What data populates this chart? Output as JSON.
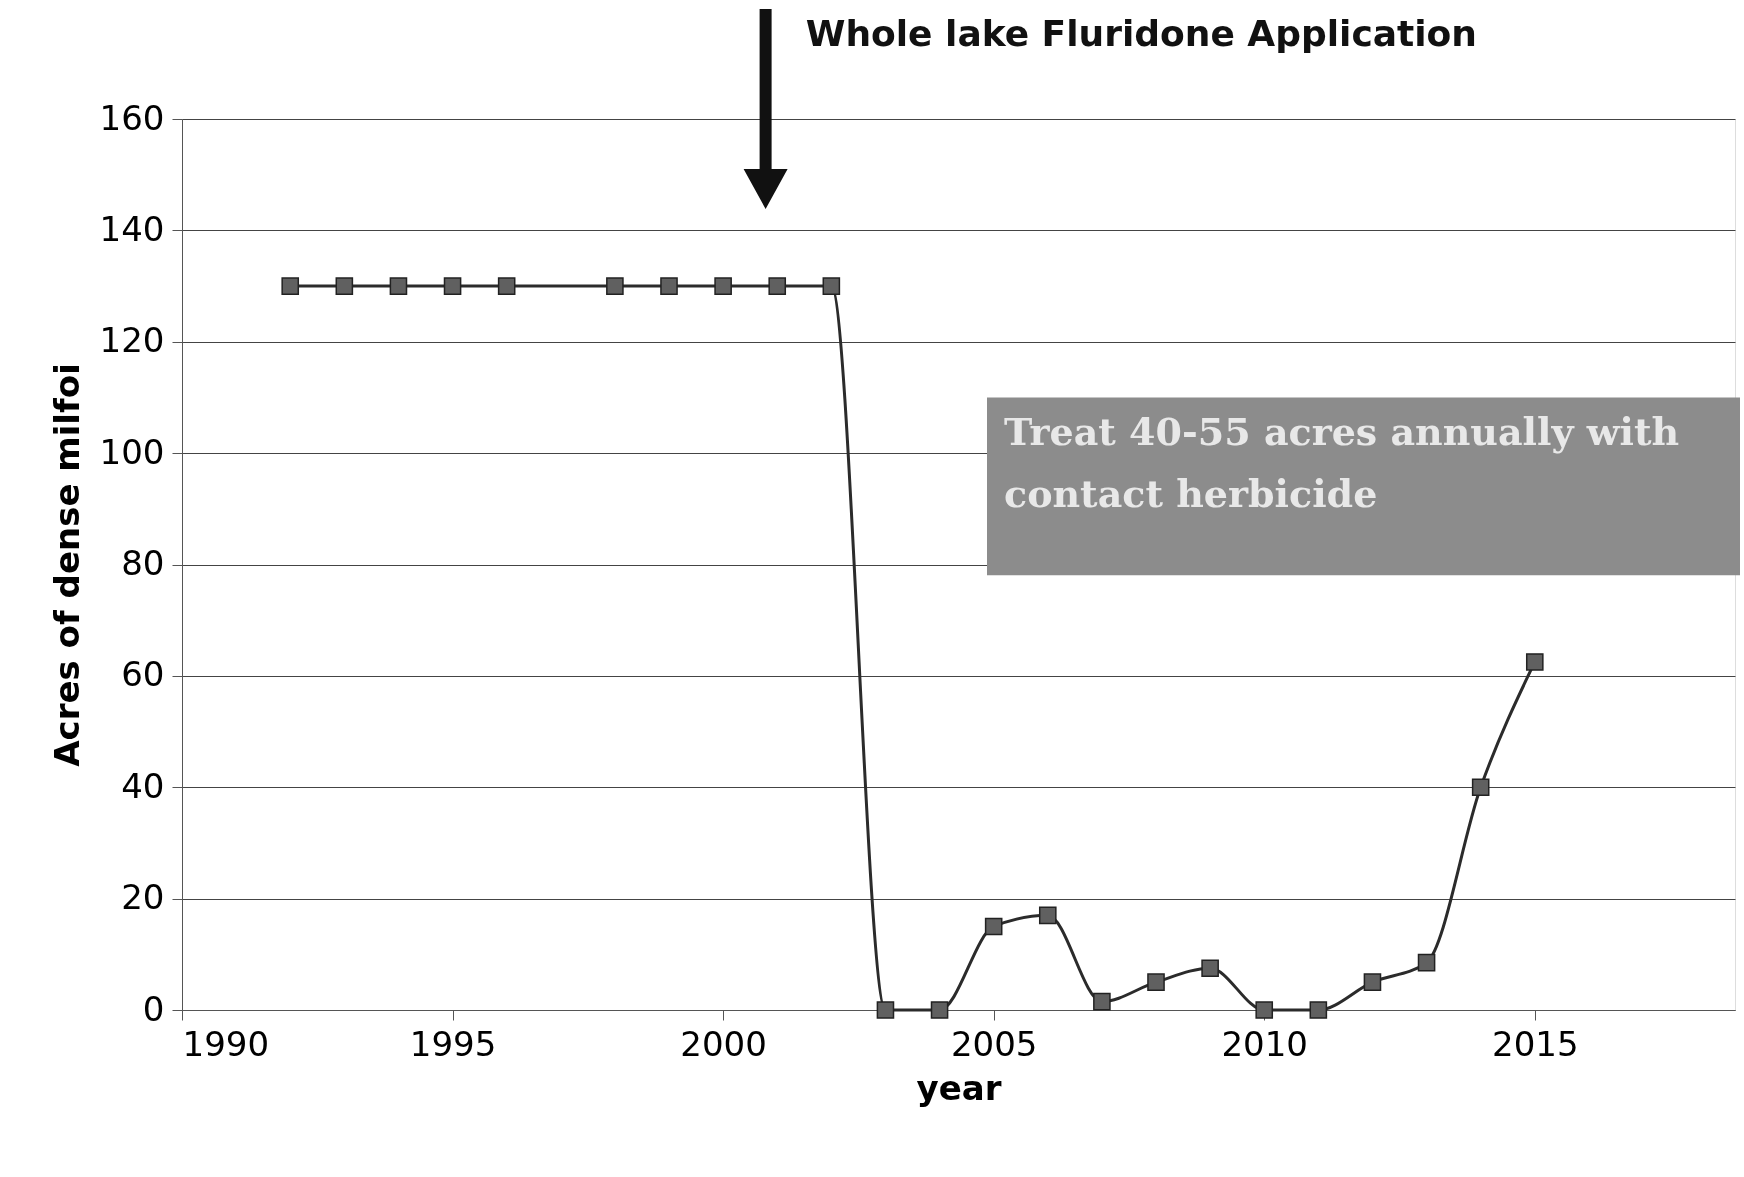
{
  "chart_data": {
    "type": "line",
    "xlabel": "year",
    "ylabel": "Acres of dense milfoi",
    "x": [
      1992,
      1993,
      1994,
      1995,
      1996,
      1998,
      1999,
      2000,
      2001,
      2002,
      2003,
      2004,
      2005,
      2006,
      2007,
      2008,
      2009,
      2010,
      2011,
      2012,
      2013,
      2014,
      2015
    ],
    "series": [
      {
        "color": "#2b2b2b",
        "values": [
          130,
          130,
          130,
          130,
          130,
          130,
          130,
          130,
          130,
          130,
          0,
          0,
          15,
          17,
          1.5,
          5,
          7.5,
          0,
          0,
          5,
          8.5,
          40,
          62.5
        ]
      }
    ],
    "marker": "square",
    "line_style": "solid",
    "grid": "y",
    "xlim": [
      1990,
      2018.7
    ],
    "xticks": [
      1990,
      1995,
      2000,
      2005,
      2010,
      2015
    ],
    "ylim": [
      0,
      160
    ],
    "yticks": [
      0,
      20,
      40,
      60,
      80,
      100,
      120,
      140,
      160
    ],
    "annotations": [
      "Whole lake Fluridone Application",
      "Treat 40-55 acres annually with contact herbicide"
    ]
  }
}
